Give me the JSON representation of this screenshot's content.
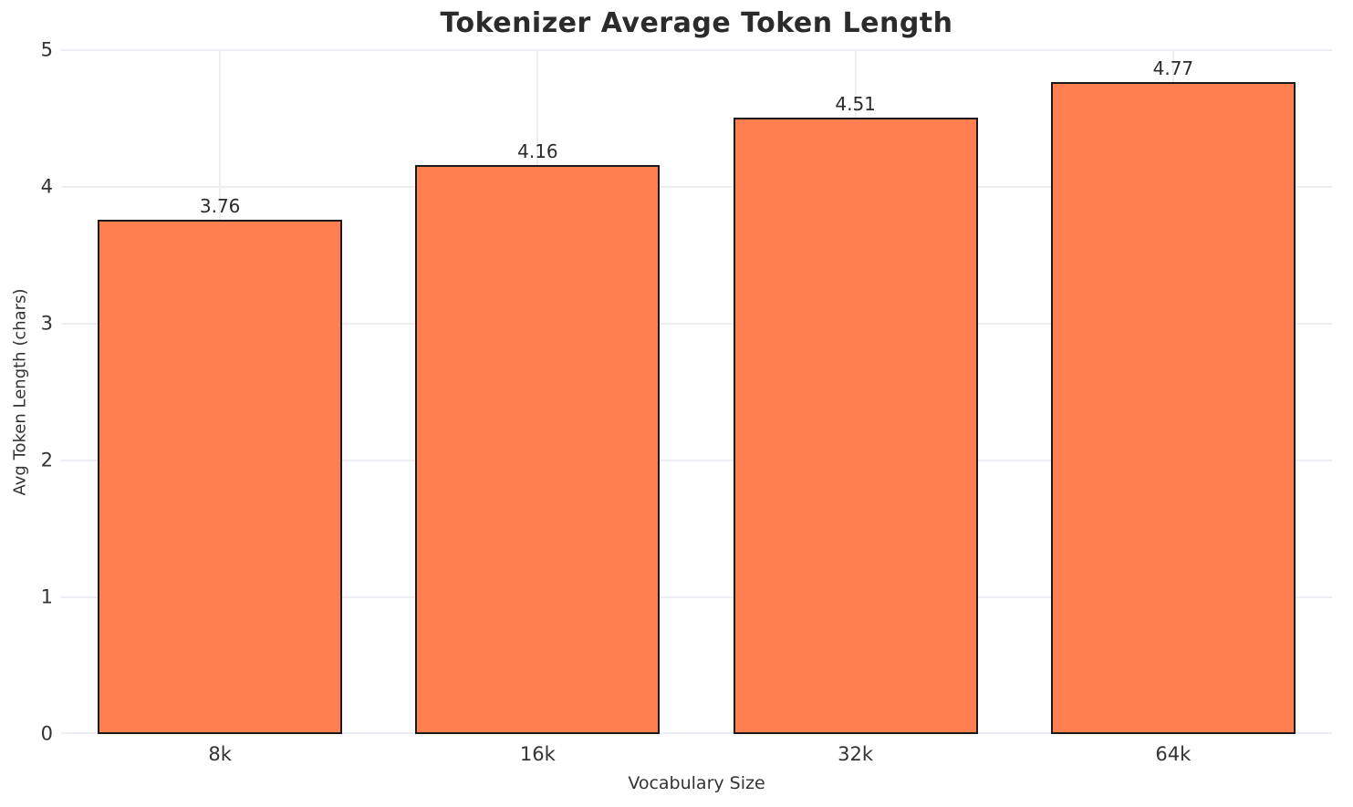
{
  "chart_data": {
    "type": "bar",
    "title": "Tokenizer Average Token Length",
    "xlabel": "Vocabulary Size",
    "ylabel": "Avg Token Length (chars)",
    "categories": [
      "8k",
      "16k",
      "32k",
      "64k"
    ],
    "values": [
      3.76,
      4.16,
      4.51,
      4.77
    ],
    "value_labels": [
      "3.76",
      "4.16",
      "4.51",
      "4.77"
    ],
    "ylim": [
      0,
      5
    ],
    "yticks": [
      0,
      1,
      2,
      3,
      4,
      5
    ],
    "grid": true,
    "legend": "none",
    "bar_color": "#ff7f50",
    "bar_edge_color": "#1a1a1a",
    "grid_color": "#eceef3",
    "title_color": "#2b2b2b",
    "tick_color": "#333333"
  }
}
